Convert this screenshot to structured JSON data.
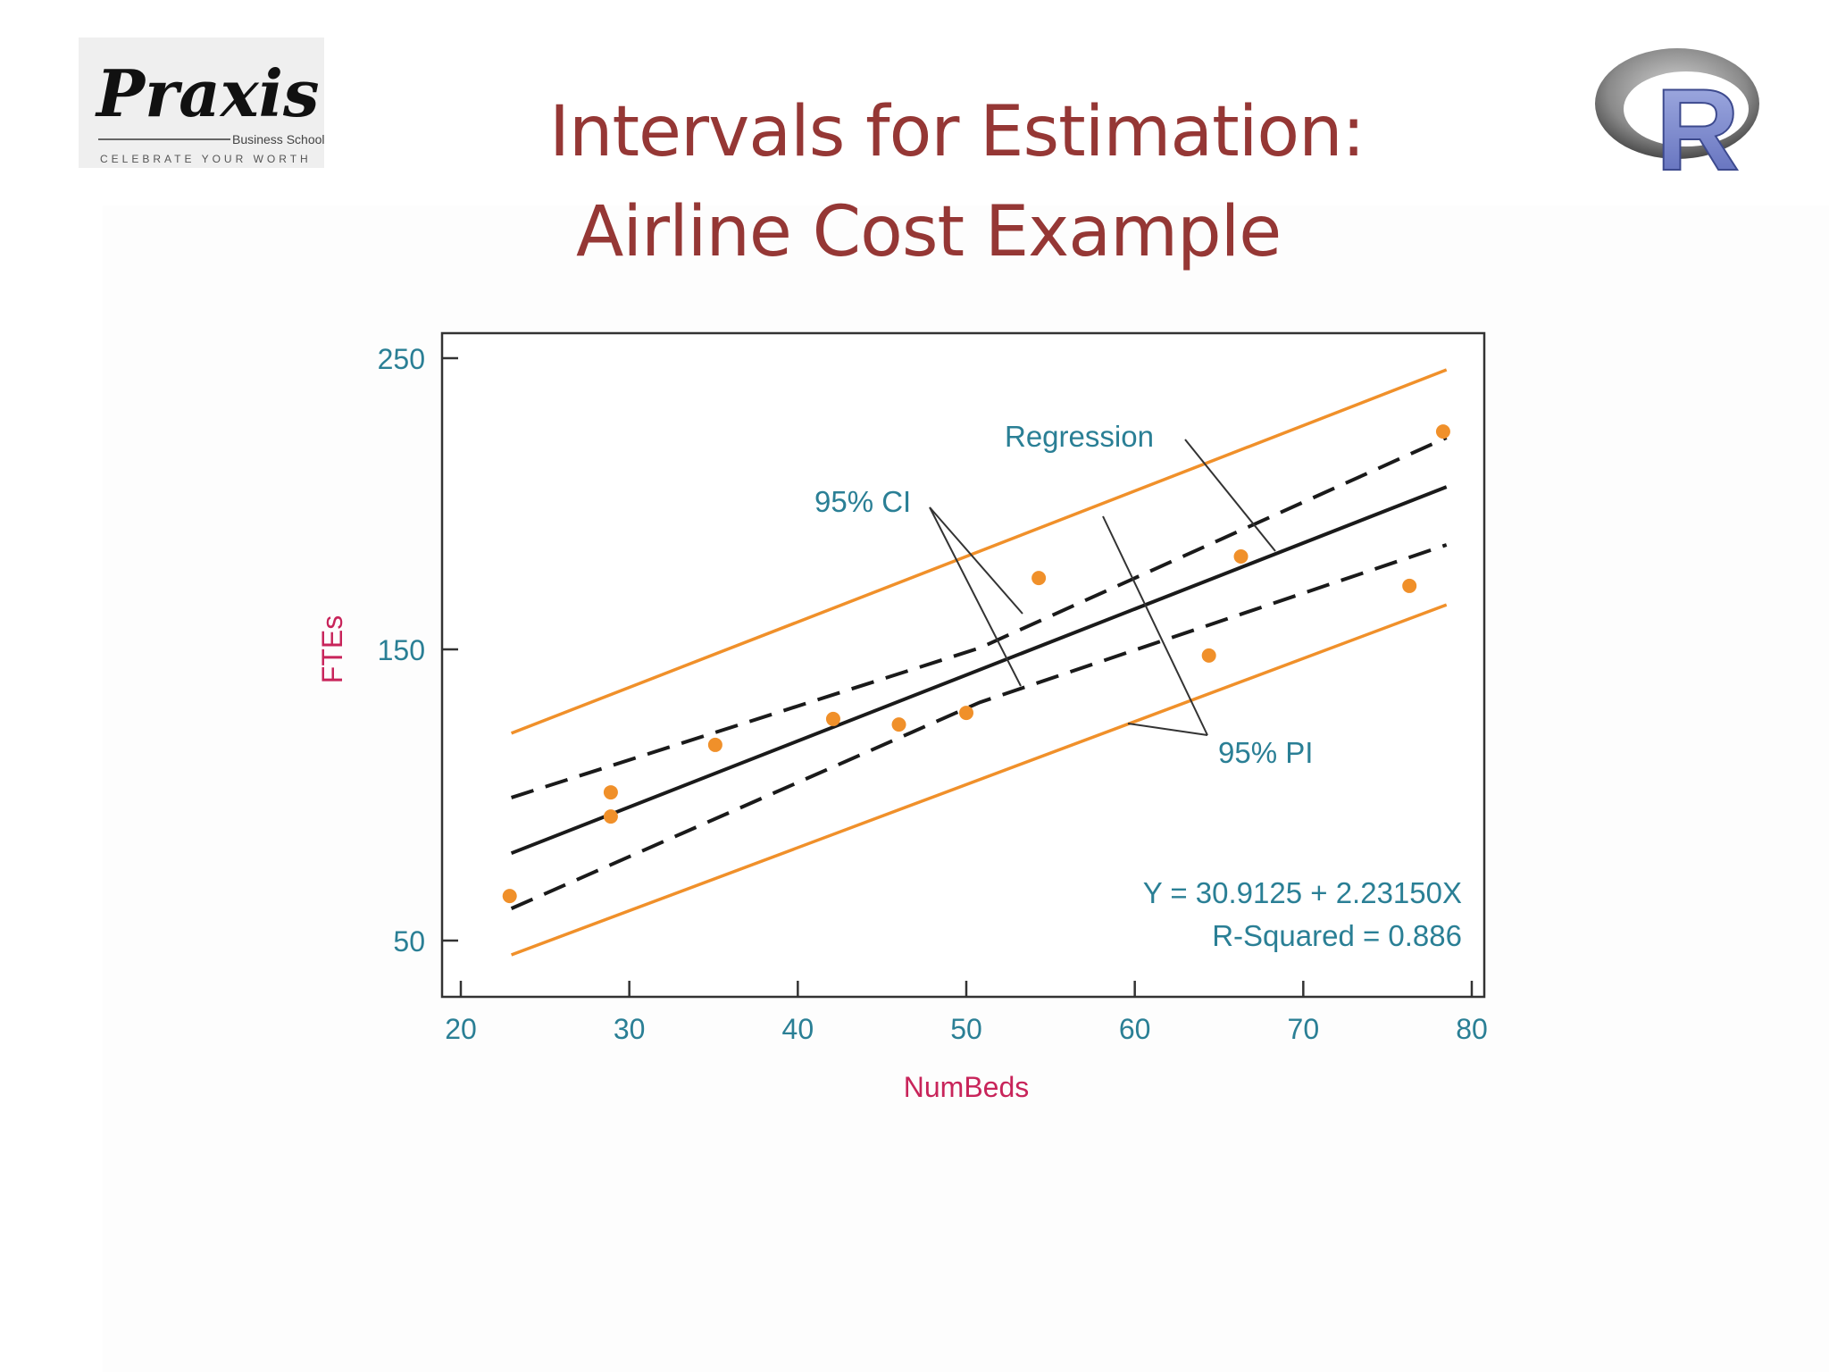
{
  "slide": {
    "title_line1": "Intervals for Estimation:",
    "title_line2": "Airline Cost Example",
    "title_color": "#953735"
  },
  "logos": {
    "left": {
      "name": "Praxis",
      "subtitle": "Business School",
      "tagline": "CELEBRATE YOUR WORTH"
    },
    "right": {
      "name": "R"
    }
  },
  "chart_data": {
    "type": "scatter",
    "title": "",
    "xlabel": "NumBeds",
    "ylabel": "FTEs",
    "xlim": [
      19,
      81
    ],
    "ylim": [
      30,
      260
    ],
    "x_ticks": [
      20,
      30,
      40,
      50,
      60,
      70,
      80
    ],
    "y_ticks": [
      50,
      150,
      250
    ],
    "grid": false,
    "legend": null,
    "points": {
      "x": [
        22.9,
        28.9,
        28.9,
        35.1,
        42.1,
        46.0,
        50.0,
        54.3,
        64.4,
        66.3,
        76.3,
        78.3
      ],
      "y": [
        65.3,
        100.9,
        92.6,
        117.2,
        126.1,
        124.2,
        128.2,
        174.5,
        147.9,
        181.9,
        171.8,
        224.8
      ],
      "color": "#f0902a"
    },
    "series": [
      {
        "name": "Regression",
        "style": "solid",
        "color": "#1a1a1a",
        "x": [
          23.0,
          78.5
        ],
        "y": [
          80.0,
          205.8
        ]
      },
      {
        "name": "95% CI upper",
        "style": "dashed",
        "color": "#1a1a1a",
        "x": [
          23.0,
          50.8,
          78.5
        ],
        "y": [
          99.1,
          150.5,
          222.7
        ]
      },
      {
        "name": "95% CI lower",
        "style": "dashed",
        "color": "#1a1a1a",
        "x": [
          23.0,
          50.8,
          78.5
        ],
        "y": [
          61.0,
          131.8,
          185.9
        ]
      },
      {
        "name": "95% PI upper",
        "style": "solid",
        "color": "#f0902a",
        "x": [
          23.0,
          78.5
        ],
        "y": [
          121.2,
          246.0
        ]
      },
      {
        "name": "95% PI lower",
        "style": "solid",
        "color": "#f0902a",
        "x": [
          23.0,
          78.5
        ],
        "y": [
          45.1,
          165.3
        ]
      }
    ],
    "annotations": [
      {
        "text": "Regression",
        "color": "#2a7f95"
      },
      {
        "text": "95% CI",
        "color": "#2a7f95"
      },
      {
        "text": "95% PI",
        "color": "#2a7f95"
      },
      {
        "text": "Y = 30.9125 + 2.23150X",
        "color": "#2a7f95"
      },
      {
        "text": "R-Squared = 0.886",
        "color": "#2a7f95"
      }
    ],
    "regression": {
      "intercept": 30.9125,
      "slope": 2.2315,
      "r_squared": 0.886
    },
    "axis_label_color": "#c8245a",
    "tick_label_color": "#2a7f95"
  }
}
